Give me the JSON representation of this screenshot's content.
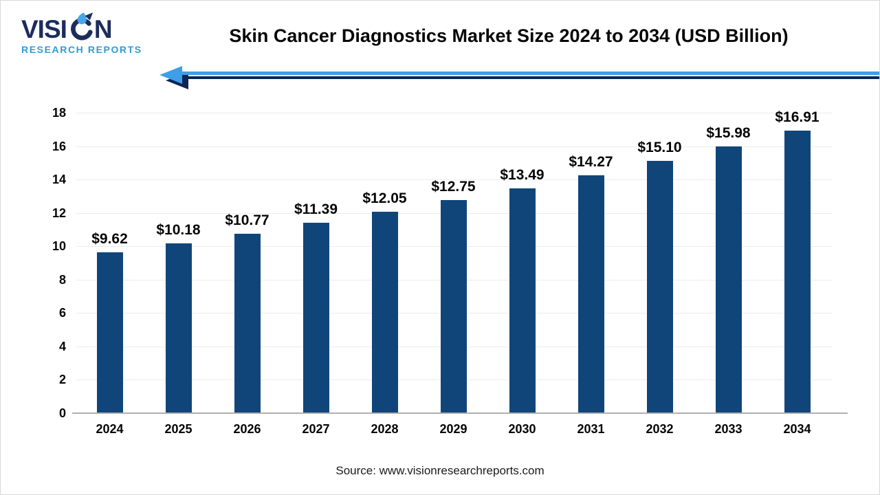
{
  "logo": {
    "brand_prefix": "VISI",
    "brand_suffix": "N",
    "subtitle": "RESEARCH REPORTS"
  },
  "header": {
    "title": "Skin Cancer Diagnostics Market Size 2024 to 2034 (USD Billion)"
  },
  "footer": {
    "source": "Source: www.visionresearchreports.com"
  },
  "colors": {
    "bar": "#10457A",
    "grid": "#ECECEC",
    "axis": "#AFAFAF",
    "arrow_light_blue": "#3E9EE8",
    "arrow_navy": "#0D2554",
    "logo_navy": "#1B2D5B",
    "logo_blue": "#2D9BD5",
    "text": "#050505"
  },
  "chart_data": {
    "type": "bar",
    "title": "Skin Cancer Diagnostics Market Size 2024 to 2034 (USD Billion)",
    "categories": [
      "2024",
      "2025",
      "2026",
      "2027",
      "2028",
      "2029",
      "2030",
      "2031",
      "2032",
      "2033",
      "2034"
    ],
    "values": [
      9.62,
      10.18,
      10.77,
      11.39,
      12.05,
      12.75,
      13.49,
      14.27,
      15.1,
      15.98,
      16.91
    ],
    "value_labels": [
      "$9.62",
      "$10.18",
      "$10.77",
      "$11.39",
      "$12.05",
      "$12.75",
      "$13.49",
      "$14.27",
      "$15.10",
      "$15.98",
      "$16.91"
    ],
    "xlabel": "",
    "ylabel": "",
    "ylim": [
      0,
      18
    ],
    "ytick_step": 2,
    "ytick_labels": [
      "0",
      "2",
      "4",
      "6",
      "8",
      "10",
      "12",
      "14",
      "16",
      "18"
    ],
    "grid": true,
    "legend": "none",
    "bar_color": "#10457A"
  }
}
